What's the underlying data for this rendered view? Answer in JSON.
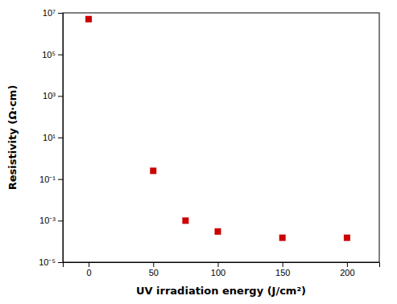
{
  "chart_data": {
    "type": "scatter",
    "x": [
      0,
      50,
      75,
      100,
      150,
      200
    ],
    "values": [
      5000000,
      0.25,
      0.001,
      0.0003,
      0.00015,
      0.00015
    ],
    "color": "#CC0000",
    "marker": "square",
    "xlabel": "UV irradiation energy (J/cm²)",
    "ylabel": "Resistivity (Ω·cm)",
    "log": "y",
    "xlim": [
      -20,
      225
    ],
    "ylim": [
      1e-05,
      10000000
    ],
    "xticks": [
      0,
      50,
      100,
      150,
      200
    ],
    "yticks": [
      {
        "value": 1e-05,
        "label": "10⁻⁵"
      },
      {
        "value": 0.001,
        "label": "10⁻³"
      },
      {
        "value": 0.1,
        "label": "10⁻¹"
      },
      {
        "value": 10,
        "label": "10¹"
      },
      {
        "value": 1000,
        "label": "10³"
      },
      {
        "value": 100000,
        "label": "10⁵"
      },
      {
        "value": 10000000,
        "label": "10⁷"
      }
    ]
  }
}
